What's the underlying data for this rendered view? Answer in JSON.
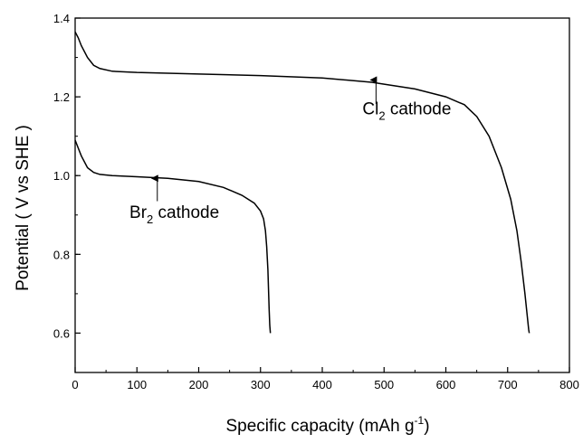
{
  "chart_data": {
    "type": "line",
    "xlabel": "Specific capacity (mAh g",
    "xlabel_sup": "-1",
    "xlabel_end": ")",
    "ylabel": "Potential ( V vs SHE )",
    "xlim": [
      0,
      800
    ],
    "ylim": [
      0.5,
      1.4
    ],
    "xticks": [
      "0",
      "100",
      "200",
      "300",
      "400",
      "500",
      "600",
      "700",
      "800"
    ],
    "yticks": [
      "0.6",
      "0.8",
      "1.0",
      "1.2",
      "1.4"
    ],
    "grid": false,
    "legend": "none",
    "series": [
      {
        "color": "#000000",
        "x": [
          0,
          5,
          10,
          20,
          30,
          40,
          60,
          100,
          200,
          300,
          400,
          480,
          550,
          600,
          630,
          650,
          670,
          690,
          705,
          715,
          722,
          728,
          732,
          734,
          735
        ],
        "y": [
          1.365,
          1.35,
          1.33,
          1.3,
          1.28,
          1.272,
          1.265,
          1.262,
          1.258,
          1.254,
          1.248,
          1.237,
          1.22,
          1.2,
          1.18,
          1.15,
          1.1,
          1.02,
          0.94,
          0.86,
          0.78,
          0.7,
          0.64,
          0.61,
          0.6
        ]
      },
      {
        "color": "#000000",
        "x": [
          0,
          5,
          10,
          20,
          30,
          40,
          60,
          100,
          150,
          200,
          240,
          270,
          290,
          300,
          305,
          308,
          310,
          312,
          313,
          314,
          315,
          316
        ],
        "y": [
          1.09,
          1.07,
          1.05,
          1.02,
          1.008,
          1.003,
          1.0,
          0.997,
          0.993,
          0.985,
          0.97,
          0.95,
          0.93,
          0.91,
          0.89,
          0.86,
          0.82,
          0.76,
          0.71,
          0.66,
          0.62,
          0.6
        ]
      }
    ],
    "annotations": [
      {
        "base": "Cl",
        "sub": "2",
        "rest": " cathode",
        "x": 465,
        "y": 1.155
      },
      {
        "base": "Br",
        "sub": "2",
        "rest": " cathode",
        "x": 88,
        "y": 0.893
      }
    ],
    "arrows": [
      {
        "x": 487,
        "y_from": 1.182,
        "y_to": 1.243
      },
      {
        "x": 133,
        "y_from": 0.935,
        "y_to": 0.993
      }
    ]
  }
}
